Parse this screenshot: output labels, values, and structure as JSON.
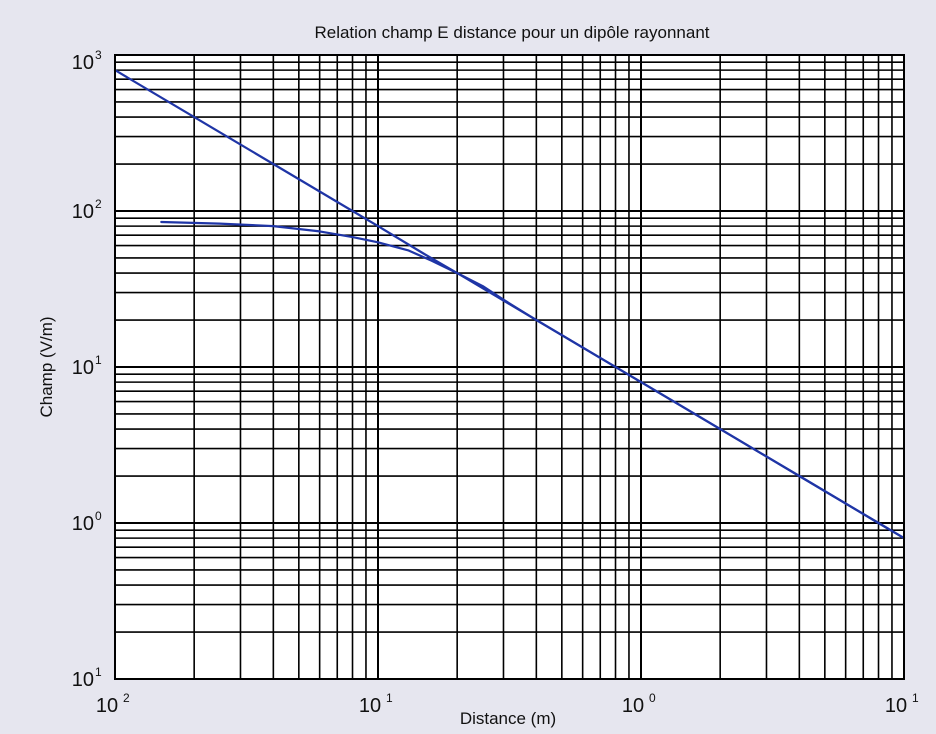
{
  "chart_data": {
    "type": "line",
    "title": "Relation champ E distance pour un dipôle rayonnant",
    "xlabel": "Distance (m)",
    "ylabel": "Champ (V/m)",
    "xscale": "log",
    "yscale": "log",
    "xlim": [
      0.01,
      10
    ],
    "ylim": [
      0.1,
      1000
    ],
    "grid": true,
    "x_ticks": [
      {
        "base": "10",
        "exp": "2"
      },
      {
        "base": "10",
        "exp": "1"
      },
      {
        "base": "10",
        "exp": "0"
      },
      {
        "base": "10",
        "exp": "1"
      }
    ],
    "y_ticks": [
      {
        "base": "10",
        "exp": "3"
      },
      {
        "base": "10",
        "exp": "2"
      },
      {
        "base": "10",
        "exp": "1"
      },
      {
        "base": "10",
        "exp": "0"
      },
      {
        "base": "10",
        "exp": "1"
      }
    ],
    "series": [
      {
        "style": "solid",
        "x": [
          0.01,
          0.02,
          0.04,
          0.08,
          0.1,
          0.15,
          0.2,
          0.4,
          1,
          2,
          4,
          8,
          10
        ],
        "y": [
          800,
          400,
          200,
          100,
          80,
          53,
          40,
          20,
          8,
          4,
          2,
          1.0,
          0.8
        ]
      },
      {
        "style": "solid",
        "x": [
          0.015,
          0.025,
          0.04,
          0.06,
          0.08,
          0.1,
          0.13,
          0.16,
          0.2,
          0.25,
          0.3,
          0.4,
          1,
          2,
          4,
          8,
          10
        ],
        "y": [
          85,
          83,
          80,
          74,
          68,
          63,
          56,
          48,
          40,
          33,
          27,
          20,
          8,
          4,
          2,
          1.0,
          0.8
        ]
      }
    ],
    "colors": {
      "line": "#1f35a6",
      "grid": "#000000",
      "background": "#e6e6ef",
      "plot_area": "#ffffff"
    }
  }
}
